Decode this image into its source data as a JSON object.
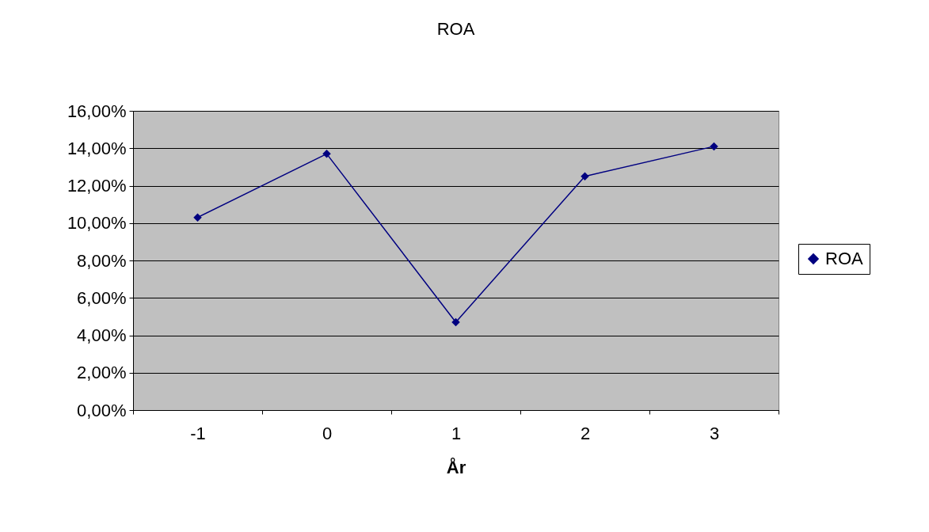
{
  "chart_data": {
    "type": "line",
    "title": "ROA",
    "xlabel": "År",
    "categories": [
      "-1",
      "0",
      "1",
      "2",
      "3"
    ],
    "series": [
      {
        "name": "ROA",
        "color": "#000080",
        "values": [
          10.3,
          13.7,
          4.7,
          12.5,
          14.1
        ]
      }
    ],
    "ylim": [
      0,
      16
    ],
    "yticks": [
      {
        "value": 0,
        "label": "0,00%"
      },
      {
        "value": 2,
        "label": "2,00%"
      },
      {
        "value": 4,
        "label": "4,00%"
      },
      {
        "value": 6,
        "label": "6,00%"
      },
      {
        "value": 8,
        "label": "8,00%"
      },
      {
        "value": 10,
        "label": "10,00%"
      },
      {
        "value": 12,
        "label": "12,00%"
      },
      {
        "value": 14,
        "label": "14,00%"
      },
      {
        "value": 16,
        "label": "16,00%"
      }
    ],
    "grid": "y",
    "legend": "right",
    "marker": "diamond",
    "line_style": "solid"
  }
}
